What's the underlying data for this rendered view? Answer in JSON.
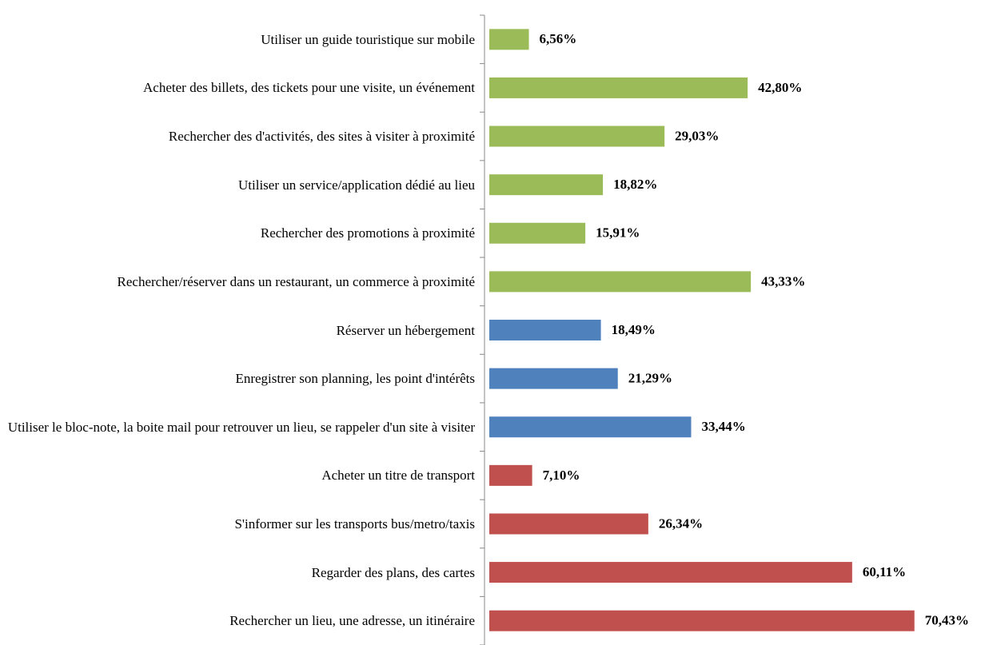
{
  "chart_data": {
    "type": "barh",
    "categories": [
      "Utiliser un guide touristique sur mobile",
      "Acheter des billets, des tickets pour une visite, un événement",
      "Rechercher des d'activités, des sites à visiter à proximité",
      "Utiliser un service/application dédié au lieu",
      "Rechercher des promotions à proximité",
      "Rechercher/réserver dans un restaurant, un commerce à proximité",
      "Réserver un hébergement",
      "Enregistrer son planning, les point d'intérêts",
      "Utiliser le bloc-note, la boite mail pour retrouver un lieu, se rappeler d'un site à visiter",
      "Acheter un titre de transport",
      "S'informer sur les transports bus/metro/taxis",
      "Regarder des plans, des cartes",
      "Rechercher un lieu, une adresse, un itinéraire"
    ],
    "values": [
      6.56,
      42.8,
      29.03,
      18.82,
      15.91,
      43.33,
      18.49,
      21.29,
      33.44,
      7.1,
      26.34,
      60.11,
      70.43
    ],
    "value_labels": [
      "6,56%",
      "42,80%",
      "29,03%",
      "18,82%",
      "15,91%",
      "43,33%",
      "18,49%",
      "21,29%",
      "33,44%",
      "7,10%",
      "26,34%",
      "60,11%",
      "70,43%"
    ],
    "colors": [
      "#9bbb59",
      "#9bbb59",
      "#9bbb59",
      "#9bbb59",
      "#9bbb59",
      "#9bbb59",
      "#4f81bd",
      "#4f81bd",
      "#4f81bd",
      "#c0504d",
      "#c0504d",
      "#c0504d",
      "#c0504d"
    ],
    "xlim": [
      0,
      75
    ]
  }
}
